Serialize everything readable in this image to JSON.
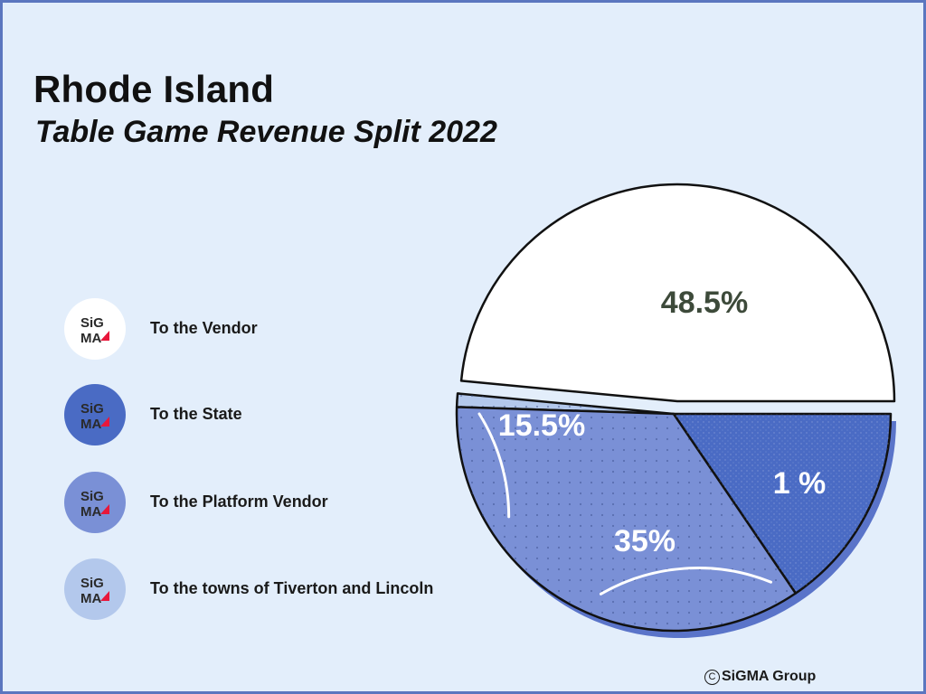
{
  "title": "Rhode Island",
  "subtitle": "Table Game Revenue Split 2022",
  "logo_text": {
    "line1": "SiG",
    "line2": "MA"
  },
  "credit": "SiGMA Group",
  "colors": {
    "background": "#e3eefb",
    "border": "#5b76bf",
    "vendor": "#ffffff",
    "state": "#4a6bc4",
    "platform_vendor": "#7a90d6",
    "towns": "#b3c8ec",
    "logo_red": "#e8173b"
  },
  "chart_data": {
    "type": "pie",
    "title": "Table Game Revenue Split 2022",
    "legend_position": "left",
    "slices": [
      {
        "name": "To the Vendor",
        "value": 48.5,
        "label": "48.5%",
        "color": "#ffffff",
        "text_color": "#3d4a3a",
        "exploded": true
      },
      {
        "name": "To the towns of Tiverton and Lincoln",
        "value": 1,
        "label": "1 %",
        "color": "#b3c8ec",
        "text_color": "#ffffff",
        "exploded": false
      },
      {
        "name": "To the Platform Vendor",
        "value": 35,
        "label": "35%",
        "color": "#7a90d6",
        "text_color": "#ffffff",
        "exploded": false
      },
      {
        "name": "To the State",
        "value": 15.5,
        "label": "15.5%",
        "color": "#4a6bc4",
        "text_color": "#ffffff",
        "exploded": false
      }
    ]
  }
}
